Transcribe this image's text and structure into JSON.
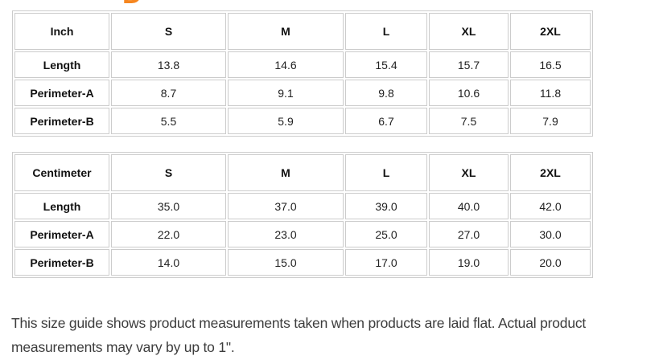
{
  "page": {
    "clipped_heading_letter": "D",
    "accent_color": "#f6861f",
    "table_border_color": "#cccccc"
  },
  "tables": [
    {
      "unit_label": "Inch",
      "sizes": [
        "S",
        "M",
        "L",
        "XL",
        "2XL"
      ],
      "rows": [
        {
          "label": "Length",
          "values": [
            "13.8",
            "14.6",
            "15.4",
            "15.7",
            "16.5"
          ]
        },
        {
          "label": "Perimeter-A",
          "values": [
            "8.7",
            "9.1",
            "9.8",
            "10.6",
            "11.8"
          ]
        },
        {
          "label": "Perimeter-B",
          "values": [
            "5.5",
            "5.9",
            "6.7",
            "7.5",
            "7.9"
          ]
        }
      ]
    },
    {
      "unit_label": "Centimeter",
      "sizes": [
        "S",
        "M",
        "L",
        "XL",
        "2XL"
      ],
      "rows": [
        {
          "label": "Length",
          "values": [
            "35.0",
            "37.0",
            "39.0",
            "40.0",
            "42.0"
          ]
        },
        {
          "label": "Perimeter-A",
          "values": [
            "22.0",
            "23.0",
            "25.0",
            "27.0",
            "30.0"
          ]
        },
        {
          "label": "Perimeter-B",
          "values": [
            "14.0",
            "15.0",
            "17.0",
            "19.0",
            "20.0"
          ]
        }
      ]
    }
  ],
  "footer_note": "This size guide shows product measurements taken when products are laid flat. Actual product measurements may vary by up to 1\"."
}
